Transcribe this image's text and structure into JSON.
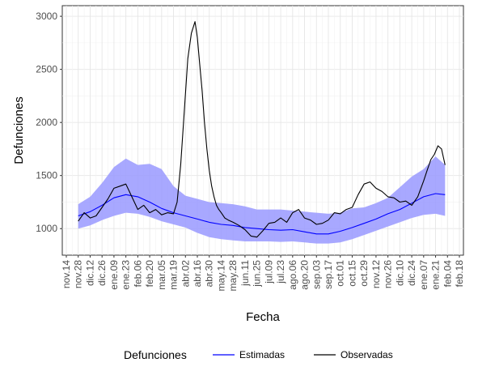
{
  "chart_data": {
    "type": "line",
    "xlabel": "Fecha",
    "ylabel": "Defunciones",
    "ylim": [
      750,
      3100
    ],
    "y_ticks": [
      1000,
      1500,
      2000,
      2500,
      3000
    ],
    "x_tick_labels": [
      "nov.14",
      "nov.28",
      "dic.12",
      "dic.26",
      "ene.09",
      "ene.23",
      "feb.06",
      "feb.20",
      "mar.05",
      "mar.19",
      "abr.02",
      "abr.16",
      "abr.30",
      "may.14",
      "may.28",
      "jun.11",
      "jun.25",
      "jul.09",
      "jul.23",
      "ago.06",
      "ago.20",
      "sep.03",
      "sep.17",
      "oct.01",
      "oct.15",
      "oct.29",
      "nov.12",
      "nov.26",
      "dic.10",
      "dic.24",
      "ene.07",
      "ene.21",
      "feb.04",
      "feb.18"
    ],
    "x_units": "weeks from nov.14",
    "x_range": [
      0,
      33
    ],
    "grid": true,
    "legend": {
      "title": "Defunciones",
      "placement": "bottom",
      "entries": [
        {
          "label": "Estimadas",
          "color": "#0000ff"
        },
        {
          "label": "Observadas",
          "color": "#000000"
        }
      ]
    },
    "band_color": "#9999ff",
    "series": [
      {
        "name": "Estimadas",
        "type": "line",
        "x": [
          1,
          2,
          3,
          4,
          5,
          6,
          7,
          8,
          9,
          10,
          11,
          12,
          13,
          14,
          15,
          16,
          17,
          18,
          19,
          20,
          21,
          22,
          23,
          24,
          25,
          26,
          27,
          28,
          29,
          30,
          31,
          31.8
        ],
        "values": [
          1120,
          1160,
          1220,
          1290,
          1320,
          1300,
          1250,
          1190,
          1150,
          1120,
          1090,
          1060,
          1040,
          1030,
          1010,
          1000,
          990,
          985,
          990,
          970,
          950,
          950,
          975,
          1010,
          1050,
          1090,
          1140,
          1180,
          1240,
          1300,
          1330,
          1320
        ]
      },
      {
        "name": "Intervalo",
        "type": "band",
        "x": [
          1,
          2,
          3,
          4,
          5,
          6,
          7,
          8,
          9,
          10,
          11,
          12,
          13,
          14,
          15,
          16,
          17,
          18,
          19,
          20,
          21,
          22,
          23,
          24,
          25,
          26,
          27,
          28,
          29,
          30,
          31,
          31.8
        ],
        "lower": [
          1000,
          1030,
          1080,
          1120,
          1150,
          1140,
          1110,
          1070,
          1040,
          1010,
          960,
          920,
          900,
          890,
          880,
          880,
          880,
          875,
          880,
          870,
          860,
          860,
          870,
          900,
          940,
          980,
          1020,
          1060,
          1100,
          1130,
          1140,
          1120
        ],
        "upper": [
          1230,
          1300,
          1430,
          1580,
          1660,
          1600,
          1610,
          1560,
          1400,
          1310,
          1280,
          1250,
          1240,
          1230,
          1210,
          1180,
          1180,
          1180,
          1170,
          1160,
          1150,
          1140,
          1150,
          1190,
          1200,
          1240,
          1290,
          1390,
          1490,
          1560,
          1680,
          1600
        ]
      },
      {
        "name": "Observadas",
        "type": "line",
        "x": [
          1,
          1.5,
          2,
          2.5,
          3,
          3.5,
          4,
          4.5,
          5,
          5.5,
          6,
          6.5,
          7,
          7.5,
          8,
          8.5,
          9,
          9.3,
          9.6,
          9.9,
          10.2,
          10.5,
          10.8,
          11.0,
          11.2,
          11.4,
          11.6,
          11.8,
          12.0,
          12.2,
          12.4,
          12.6,
          12.8,
          13.0,
          13.3,
          13.6,
          14,
          14.5,
          15,
          15.5,
          16,
          16.5,
          17,
          17.5,
          18,
          18.5,
          19,
          19.5,
          20,
          20.5,
          21,
          21.5,
          22,
          22.5,
          23,
          23.5,
          24,
          24.5,
          25,
          25.5,
          26,
          26.5,
          27,
          27.5,
          28,
          28.5,
          29,
          29.5,
          30,
          30.3,
          30.6,
          30.9,
          31.2,
          31.5,
          31.8
        ],
        "values": [
          1070,
          1150,
          1100,
          1120,
          1200,
          1280,
          1380,
          1400,
          1420,
          1300,
          1180,
          1220,
          1150,
          1180,
          1130,
          1150,
          1140,
          1250,
          1600,
          2100,
          2600,
          2840,
          2950,
          2800,
          2550,
          2300,
          2000,
          1750,
          1550,
          1400,
          1300,
          1220,
          1180,
          1150,
          1100,
          1080,
          1060,
          1030,
          990,
          930,
          920,
          980,
          1050,
          1060,
          1100,
          1060,
          1150,
          1180,
          1100,
          1080,
          1040,
          1050,
          1080,
          1150,
          1140,
          1180,
          1200,
          1320,
          1420,
          1440,
          1380,
          1350,
          1300,
          1290,
          1250,
          1260,
          1220,
          1300,
          1450,
          1550,
          1650,
          1700,
          1780,
          1750,
          1600
        ]
      }
    ]
  }
}
